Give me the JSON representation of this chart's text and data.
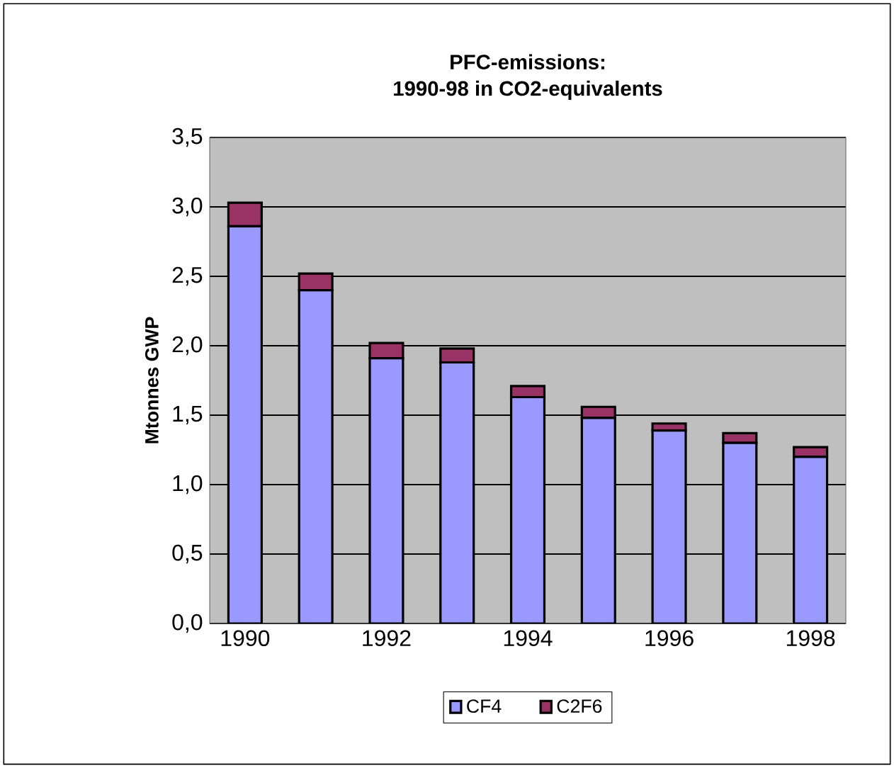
{
  "chart_data": {
    "type": "bar",
    "stacked": true,
    "title": "PFC-emissions:",
    "subtitle": "1990-98 in CO2-equivalents",
    "ylabel": "Mtonnes GWP",
    "x": [
      1990,
      1991,
      1992,
      1993,
      1994,
      1995,
      1996,
      1997,
      1998
    ],
    "series": [
      {
        "name": "CF4",
        "color": "#9999ff",
        "values": [
          2.86,
          2.4,
          1.91,
          1.88,
          1.63,
          1.48,
          1.39,
          1.3,
          1.2
        ]
      },
      {
        "name": "C2F6",
        "color": "#993366",
        "values": [
          0.17,
          0.12,
          0.11,
          0.1,
          0.08,
          0.08,
          0.05,
          0.07,
          0.07
        ]
      }
    ],
    "xlim": [
      1989.5,
      1998.5
    ],
    "xticks": [
      1990,
      1992,
      1994,
      1996,
      1998
    ],
    "ylim": [
      0,
      3.5
    ],
    "yticks": [
      {
        "value": 0,
        "label": "0,0"
      },
      {
        "value": 0.5,
        "label": "0,5"
      },
      {
        "value": 1,
        "label": "1,0"
      },
      {
        "value": 1.5,
        "label": "1,5"
      },
      {
        "value": 2,
        "label": "2,0"
      },
      {
        "value": 2.5,
        "label": "2,5"
      },
      {
        "value": 3,
        "label": "3,0"
      },
      {
        "value": 3.5,
        "label": "3,5"
      }
    ],
    "grid": "y",
    "legend": "bottom"
  }
}
